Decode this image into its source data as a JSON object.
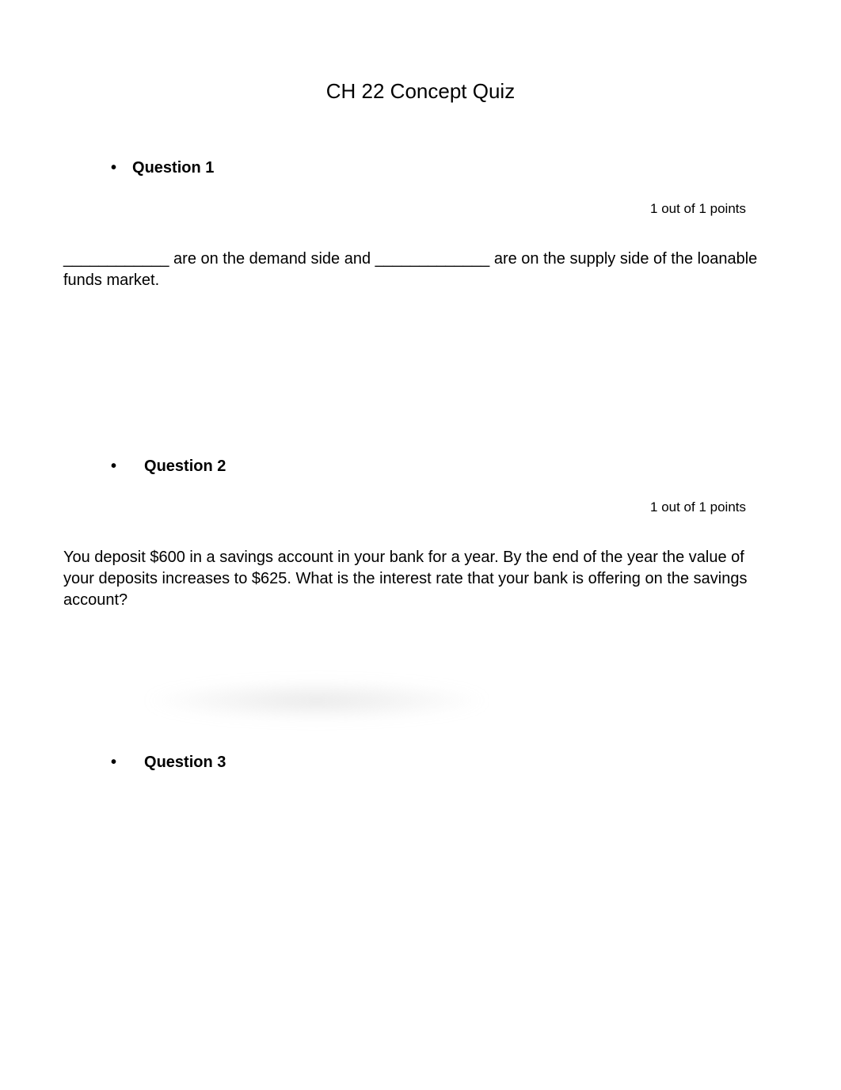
{
  "title": "CH 22 Concept Quiz",
  "questions": [
    {
      "label": "Question 1",
      "points": "1 out of 1 points",
      "text": "____________ are on the demand side and _____________ are on the supply side of the loanable funds market."
    },
    {
      "label": "Question 2",
      "points": "1 out of 1 points",
      "text": "You deposit $600 in a savings account in your bank for a year. By the end of the year the value of your deposits increases to $625. What is the interest rate that your bank is offering on the savings account?"
    },
    {
      "label": "Question 3",
      "points": "",
      "text": ""
    }
  ],
  "colors": {
    "background": "#ffffff",
    "text": "#000000"
  },
  "typography": {
    "title_fontsize": 26,
    "question_label_fontsize": 20,
    "question_text_fontsize": 20,
    "points_fontsize": 17,
    "font_family": "Arial, Helvetica, sans-serif"
  }
}
